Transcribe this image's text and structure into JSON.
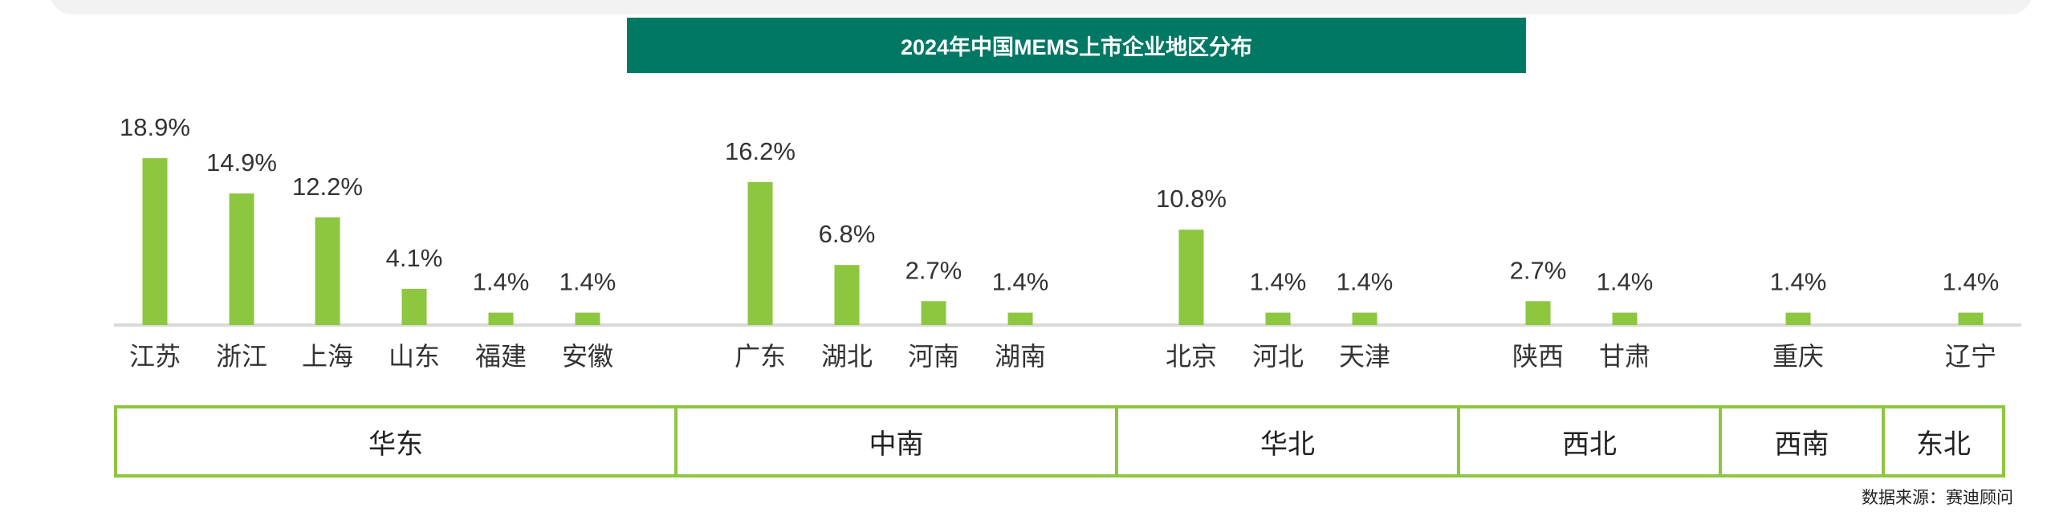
{
  "chart_data": {
    "type": "bar",
    "title": "2024年中国MEMS上市企业地区分布",
    "categories": [
      "江苏",
      "浙江",
      "上海",
      "山东",
      "福建",
      "安徽",
      "广东",
      "湖北",
      "河南",
      "湖南",
      "北京",
      "河北",
      "天津",
      "陕西",
      "甘肃",
      "重庆",
      "辽宁"
    ],
    "values": [
      18.9,
      14.9,
      12.2,
      4.1,
      1.4,
      1.4,
      16.2,
      6.8,
      2.7,
      1.4,
      10.8,
      1.4,
      1.4,
      2.7,
      1.4,
      1.4,
      1.4
    ],
    "value_suffix": "%",
    "groups": [
      {
        "name": "华东",
        "members": [
          "江苏",
          "浙江",
          "上海",
          "山东",
          "福建",
          "安徽"
        ]
      },
      {
        "name": "中南",
        "members": [
          "广东",
          "湖北",
          "河南",
          "湖南"
        ]
      },
      {
        "name": "华北",
        "members": [
          "北京",
          "河北",
          "天津"
        ]
      },
      {
        "name": "西北",
        "members": [
          "陕西",
          "甘肃"
        ]
      },
      {
        "name": "西南",
        "members": [
          "重庆"
        ]
      },
      {
        "name": "东北",
        "members": [
          "辽宁"
        ]
      }
    ],
    "ylim": [
      0,
      20
    ],
    "grid": false,
    "bar_color": "#8dc63f",
    "baseline_color": "#d9d9d9"
  },
  "source": "数据来源：赛迪顾问"
}
